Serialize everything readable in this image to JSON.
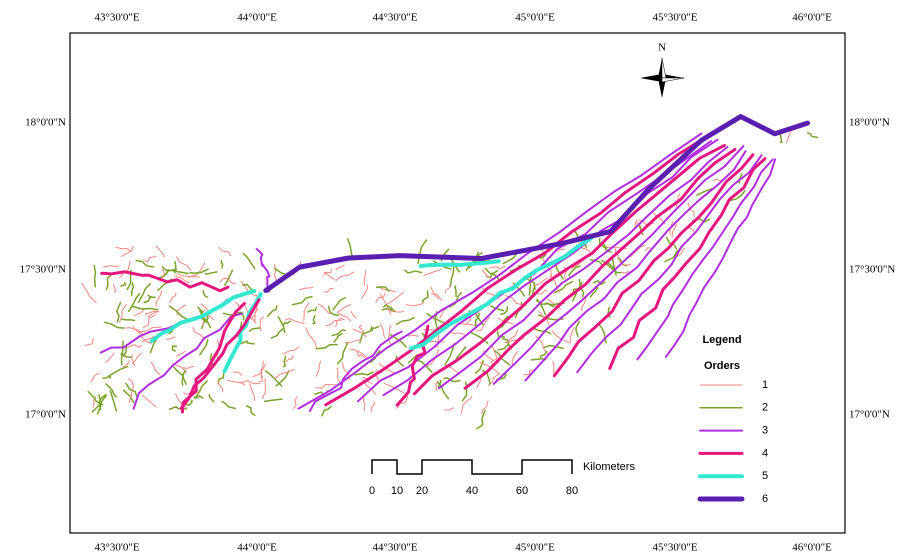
{
  "map": {
    "graticule": {
      "top": [
        "43°30'0\"E",
        "44°0'0\"E",
        "44°30'0\"E",
        "45°0'0\"E",
        "45°30'0\"E",
        "46°0'0\"E"
      ],
      "bottom": [
        "43°30'0\"E",
        "44°0'0\"E",
        "44°30'0\"E",
        "45°0'0\"E",
        "45°30'0\"E",
        "46°0'0\"E"
      ],
      "left": [
        "18°0'0\"N",
        "17°30'0\"N",
        "17°0'0\"N"
      ],
      "right": [
        "18°0'0\"N",
        "17°30'0\"N",
        "17°0'0\"N"
      ]
    },
    "north": "N",
    "legend": {
      "title": "Legend",
      "subtitle": "Orders",
      "items": [
        {
          "label": "1",
          "color": "#f4877f"
        },
        {
          "label": "2",
          "color": "#7aa32a"
        },
        {
          "label": "3",
          "color": "#b02ee0"
        },
        {
          "label": "4",
          "color": "#e6167f"
        },
        {
          "label": "5",
          "color": "#33e8d0"
        },
        {
          "label": "6",
          "color": "#5a1fb0"
        }
      ]
    },
    "scale_bar": {
      "labels": [
        0,
        10,
        20,
        40,
        60,
        80
      ],
      "unit": "Kilometers"
    }
  }
}
